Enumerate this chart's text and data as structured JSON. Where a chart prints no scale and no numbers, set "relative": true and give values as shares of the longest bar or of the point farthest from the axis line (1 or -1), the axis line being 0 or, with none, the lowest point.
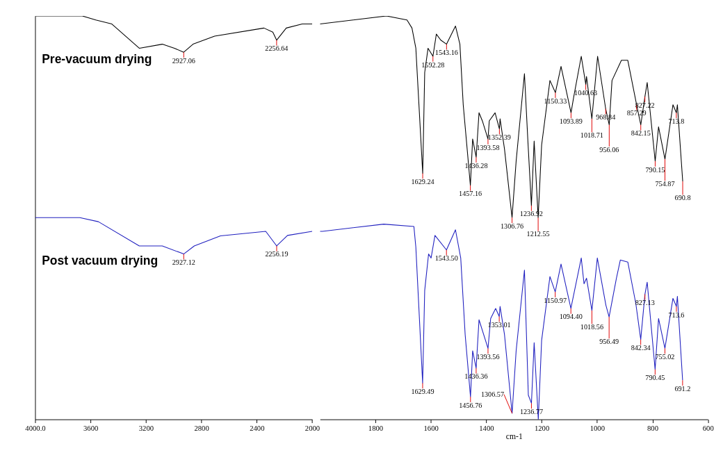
{
  "chart_data": [
    {
      "type": "line",
      "relative": true,
      "xlim": [
        4000,
        2000
      ],
      "xticks": [
        {
          "value": 4000,
          "label": "4000.0"
        },
        3600,
        3200,
        2800,
        2400,
        2000
      ],
      "grid": false,
      "marker": "none",
      "line_style": "solid",
      "series": [
        {
          "name": "Pre-vacuum drying",
          "color": "#000000",
          "x": [
            4000,
            3659,
            3562,
            3446,
            3248,
            3082,
            2994,
            2927.06,
            2860,
            2704,
            2348,
            2284,
            2256.64,
            2187,
            2072,
            2000
          ],
          "values": [
            1.0,
            1.0,
            0.99,
            0.98,
            0.92,
            0.93,
            0.92,
            0.91,
            0.93,
            0.95,
            0.97,
            0.96,
            0.94,
            0.97,
            0.98,
            0.98
          ]
        },
        {
          "name": "Post vacuum drying",
          "color": "#1f1fbf",
          "x": [
            4000,
            3677,
            3543,
            3248,
            3082,
            2927.12,
            2851,
            2662,
            2335,
            2256.19,
            2178,
            2000
          ],
          "values": [
            0.5,
            0.5,
            0.49,
            0.43,
            0.43,
            0.41,
            0.43,
            0.455,
            0.466,
            0.43,
            0.456,
            0.466
          ]
        }
      ],
      "annotations": [
        {
          "text": "2927.06",
          "x": 2927.06,
          "y": 0.91
        },
        {
          "text": "2256.64",
          "x": 2256.64,
          "y": 0.94
        },
        {
          "text": "2927.12",
          "x": 2927.12,
          "y": 0.41
        },
        {
          "text": "2256.19",
          "x": 2256.19,
          "y": 0.43
        }
      ]
    },
    {
      "type": "line",
      "relative": true,
      "xlabel": "cm-1",
      "xlim": [
        2000,
        600
      ],
      "xticks": [
        1800,
        1600,
        1400,
        1200,
        1000,
        800,
        600
      ],
      "grid": false,
      "marker": "none",
      "line_style": "solid",
      "series": [
        {
          "color": "#000000",
          "x": [
            2000,
            1760,
            1686,
            1668,
            1654,
            1629.24,
            1622,
            1610,
            1592.28,
            1580,
            1564,
            1543.16,
            1511,
            1495,
            1483,
            1457.16,
            1449,
            1436.28,
            1426,
            1414,
            1393.58,
            1389,
            1368,
            1352.39,
            1350,
            1334,
            1306.76,
            1292,
            1262,
            1250,
            1236.92,
            1227,
            1212.55,
            1200,
            1170,
            1150.33,
            1130,
            1093.89,
            1084,
            1057,
            1040.63,
            1038,
            1018.71,
            998,
            968.84,
            956.06,
            946,
            912,
            889,
            857.29,
            842.15,
            827.22,
            819,
            790.15,
            778,
            754.87,
            726,
            713.8,
            710,
            690.8
          ],
          "values": [
            0.98,
            1.0,
            0.99,
            0.97,
            0.92,
            0.61,
            0.86,
            0.92,
            0.9,
            0.955,
            0.94,
            0.93,
            0.975,
            0.93,
            0.78,
            0.58,
            0.695,
            0.65,
            0.76,
            0.74,
            0.695,
            0.74,
            0.76,
            0.72,
            0.745,
            0.67,
            0.5,
            0.64,
            0.857,
            0.695,
            0.53,
            0.69,
            0.5,
            0.68,
            0.84,
            0.81,
            0.875,
            0.76,
            0.8,
            0.9,
            0.83,
            0.85,
            0.745,
            0.9,
            0.77,
            0.73,
            0.84,
            0.89,
            0.89,
            0.78,
            0.73,
            0.8,
            0.835,
            0.64,
            0.725,
            0.645,
            0.78,
            0.76,
            0.78,
            0.59
          ]
        },
        {
          "color": "#1f1fbf",
          "x": [
            2000,
            1991,
            1770,
            1661,
            1654,
            1629.49,
            1622,
            1608,
            1599,
            1585,
            1543.5,
            1511,
            1492,
            1476,
            1456.76,
            1449,
            1436.36,
            1426,
            1393.56,
            1384,
            1366,
            1353.01,
            1350,
            1334,
            1306.57,
            1292,
            1262,
            1248,
            1236.77,
            1227,
            1212,
            1200,
            1170,
            1150.97,
            1130,
            1094.4,
            1057,
            1047,
            1038,
            1018.56,
            999,
            968,
            956.49,
            930,
            916,
            889,
            860,
            842.34,
            827.13,
            819,
            790.45,
            778,
            755.02,
            726,
            713.6,
            710,
            691.2
          ],
          "values": [
            0.466,
            0.466,
            0.484,
            0.478,
            0.427,
            0.09,
            0.32,
            0.41,
            0.4,
            0.456,
            0.42,
            0.47,
            0.4,
            0.21,
            0.056,
            0.17,
            0.127,
            0.247,
            0.176,
            0.25,
            0.275,
            0.255,
            0.28,
            0.21,
            0.015,
            0.17,
            0.37,
            0.06,
            0.04,
            0.19,
            0.0,
            0.196,
            0.354,
            0.316,
            0.385,
            0.275,
            0.4,
            0.336,
            0.35,
            0.27,
            0.4,
            0.283,
            0.254,
            0.35,
            0.395,
            0.39,
            0.287,
            0.198,
            0.31,
            0.34,
            0.124,
            0.25,
            0.176,
            0.3,
            0.28,
            0.305,
            0.097
          ]
        }
      ],
      "annotations": [
        {
          "text": "1629.24",
          "x": 1629.24,
          "y": 0.61
        },
        {
          "text": "1592.28",
          "x": 1592.28,
          "y": 0.9
        },
        {
          "text": "1543.16",
          "x": 1543.16,
          "y": 0.93
        },
        {
          "text": "1457.16",
          "x": 1457.16,
          "y": 0.58
        },
        {
          "text": "1436.28",
          "x": 1436.28,
          "y": 0.65
        },
        {
          "text": "1393.58",
          "x": 1393.58,
          "y": 0.695
        },
        {
          "text": "1352.39",
          "x": 1352.39,
          "y": 0.72
        },
        {
          "text": "1306.76",
          "x": 1306.76,
          "y": 0.5
        },
        {
          "text": "1236.92",
          "x": 1236.92,
          "y": 0.53
        },
        {
          "text": "1212.55",
          "x": 1212.55,
          "y": 0.5
        },
        {
          "text": "1150.33",
          "x": 1150.33,
          "y": 0.81
        },
        {
          "text": "1093.89",
          "x": 1093.89,
          "y": 0.76
        },
        {
          "text": "1040.63",
          "x": 1040.63,
          "y": 0.83
        },
        {
          "text": "1018.71",
          "x": 1018.71,
          "y": 0.745
        },
        {
          "text": "968.84",
          "x": 968.84,
          "y": 0.77
        },
        {
          "text": "956.06",
          "x": 956.06,
          "y": 0.73
        },
        {
          "text": "857.29",
          "x": 857.29,
          "y": 0.78
        },
        {
          "text": "842.15",
          "x": 842.15,
          "y": 0.73
        },
        {
          "text": "827.22",
          "x": 827.22,
          "y": 0.8
        },
        {
          "text": "790.15",
          "x": 790.15,
          "y": 0.64
        },
        {
          "text": "754.87",
          "x": 754.87,
          "y": 0.645
        },
        {
          "text": "713.8",
          "x": 713.8,
          "y": 0.76
        },
        {
          "text": "690.8",
          "x": 690.8,
          "y": 0.59
        },
        {
          "text": "1629.49",
          "x": 1629.49,
          "y": 0.09
        },
        {
          "text": "1543.50",
          "x": 1543.5,
          "y": 0.42
        },
        {
          "text": "1456.76",
          "x": 1456.76,
          "y": 0.056
        },
        {
          "text": "1436.36",
          "x": 1436.36,
          "y": 0.127
        },
        {
          "text": "1393.56",
          "x": 1393.56,
          "y": 0.176
        },
        {
          "text": "1353.01",
          "x": 1353.01,
          "y": 0.255
        },
        {
          "text": "1306.57",
          "x": 1306.57,
          "y": 0.015
        },
        {
          "text": "1236.77",
          "x": 1236.77,
          "y": 0.04
        },
        {
          "text": "1150.97",
          "x": 1150.97,
          "y": 0.316
        },
        {
          "text": "1094.40",
          "x": 1094.4,
          "y": 0.275
        },
        {
          "text": "1018.56",
          "x": 1018.56,
          "y": 0.27
        },
        {
          "text": "956.49",
          "x": 956.49,
          "y": 0.254
        },
        {
          "text": "842.34",
          "x": 842.34,
          "y": 0.198
        },
        {
          "text": "827.13",
          "x": 827.13,
          "y": 0.31
        },
        {
          "text": "790.45",
          "x": 790.45,
          "y": 0.124
        },
        {
          "text": "755.02",
          "x": 755.02,
          "y": 0.176
        },
        {
          "text": "713.6",
          "x": 713.6,
          "y": 0.28
        },
        {
          "text": "691.2",
          "x": 691.2,
          "y": 0.097
        }
      ]
    }
  ]
}
